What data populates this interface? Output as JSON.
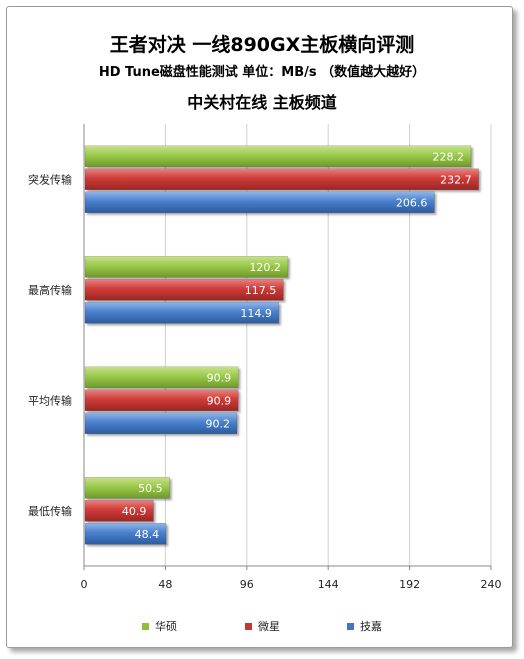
{
  "titles": {
    "main": "王者对决 一线890GX主板横向评测",
    "sub": "HD Tune磁盘性能测试 单位：MB/s （数值越大越好）",
    "source": "中关村在线 主板频道"
  },
  "chart_data": {
    "type": "bar",
    "orientation": "horizontal",
    "categories": [
      "突发传输",
      "最高传输",
      "平均传输",
      "最低传输"
    ],
    "series": [
      {
        "name": "华硕",
        "color": "#8fbe3a",
        "values": [
          228.2,
          120.2,
          90.9,
          50.5
        ]
      },
      {
        "name": "微星",
        "color": "#c63533",
        "values": [
          232.7,
          117.5,
          90.9,
          40.9
        ]
      },
      {
        "name": "技嘉",
        "color": "#3f75c2",
        "values": [
          206.6,
          114.9,
          90.2,
          48.4
        ]
      }
    ],
    "xlim": [
      0,
      240
    ],
    "xticks": [
      "0",
      "48",
      "96",
      "144",
      "192",
      "240"
    ],
    "grid": true,
    "legend_position": "bottom"
  }
}
